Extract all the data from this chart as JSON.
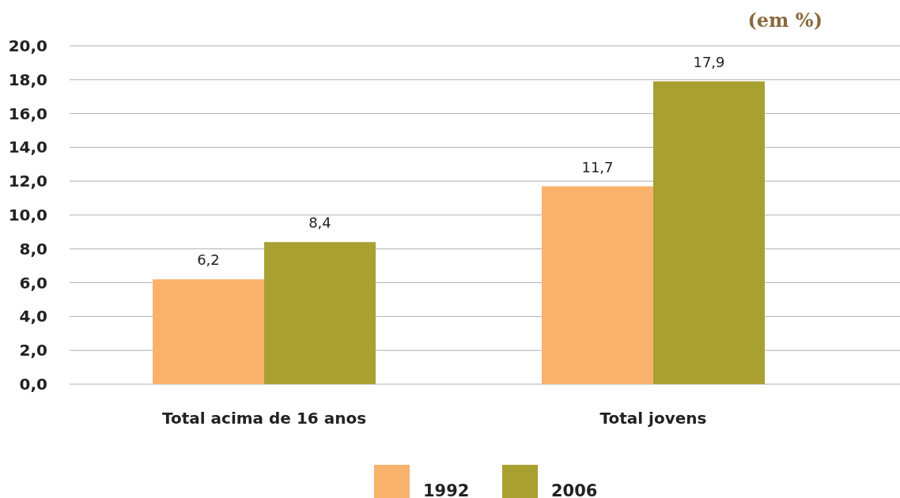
{
  "chart_data": {
    "type": "bar",
    "title": "(em %)",
    "categories": [
      "Total acima de 16 anos",
      "Total jovens"
    ],
    "series": [
      {
        "name": "1992",
        "color": "#f8b26c",
        "values": [
          6.2,
          11.7
        ],
        "value_labels": [
          "6,2",
          "11,7"
        ]
      },
      {
        "name": "2006",
        "color": "#a9a032",
        "values": [
          8.4,
          17.9
        ],
        "value_labels": [
          "8,4",
          "17,9"
        ]
      }
    ],
    "ylim": [
      0,
      20
    ],
    "yticks": [
      {
        "value": 0,
        "label": "0,0"
      },
      {
        "value": 2,
        "label": "2,0"
      },
      {
        "value": 4,
        "label": "4,0"
      },
      {
        "value": 6,
        "label": "6,0"
      },
      {
        "value": 8,
        "label": "8,0"
      },
      {
        "value": 10,
        "label": "10,0"
      },
      {
        "value": 12,
        "label": "12,0"
      },
      {
        "value": 14,
        "label": "14,0"
      },
      {
        "value": 16,
        "label": "16,0"
      },
      {
        "value": 18,
        "label": "18,0"
      },
      {
        "value": 20,
        "label": "20,0"
      }
    ],
    "grid": "y",
    "legend": "bottom"
  }
}
